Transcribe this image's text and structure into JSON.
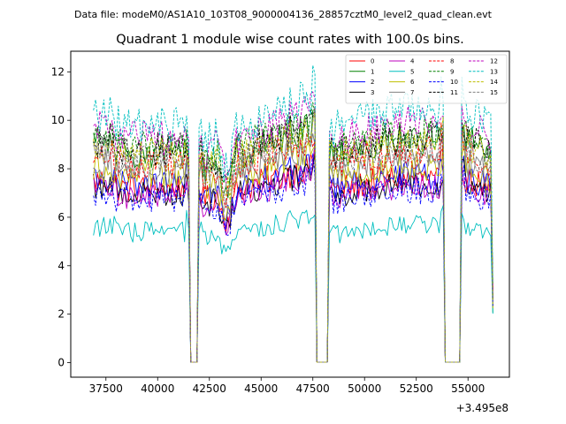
{
  "figure": {
    "suptitle": "Data file: modeM0/AS1A10_103T08_9000004136_28857cztM0_level2_quad_clean.evt"
  },
  "chart_data": {
    "type": "line",
    "title": "Quadrant 1 module wise count rates with 100.0s bins.",
    "xlabel": "",
    "ylabel": "",
    "x_offset_label": "+3.495e8",
    "xlim": [
      35800,
      57000
    ],
    "ylim": [
      -0.6,
      12.85
    ],
    "x_ticks": [
      37500,
      40000,
      42500,
      45000,
      47500,
      50000,
      52500,
      55000
    ],
    "x_tick_labels": [
      "37500",
      "40000",
      "42500",
      "45000",
      "47500",
      "50000",
      "52500",
      "55000"
    ],
    "y_ticks": [
      0,
      2,
      4,
      6,
      8,
      10,
      12
    ],
    "y_tick_labels": [
      "0",
      "2",
      "4",
      "6",
      "8",
      "10",
      "12"
    ],
    "grid": false,
    "legend_position": "top-right",
    "x_start": 36900,
    "x_end": 56150,
    "bin_width": 100,
    "gaps": [
      [
        41500,
        41950
      ],
      [
        47650,
        48250
      ],
      [
        53850,
        54650
      ]
    ],
    "series": [
      {
        "name": "0",
        "color": "#ff0000",
        "dash": "solid",
        "level": 7.2
      },
      {
        "name": "1",
        "color": "#008000",
        "dash": "solid",
        "level": 8.7
      },
      {
        "name": "2",
        "color": "#0000ff",
        "dash": "solid",
        "level": 7.3
      },
      {
        "name": "3",
        "color": "#000000",
        "dash": "solid",
        "level": 7.0
      },
      {
        "name": "4",
        "color": "#bf00bf",
        "dash": "solid",
        "level": 6.9
      },
      {
        "name": "5",
        "color": "#00bfbf",
        "dash": "solid",
        "level": 5.4
      },
      {
        "name": "6",
        "color": "#bfbf00",
        "dash": "solid",
        "level": 7.7
      },
      {
        "name": "7",
        "color": "#808080",
        "dash": "solid",
        "level": 7.9
      },
      {
        "name": "8",
        "color": "#ff0000",
        "dash": "dashed",
        "level": 8.2
      },
      {
        "name": "9",
        "color": "#008000",
        "dash": "dashed",
        "level": 8.9
      },
      {
        "name": "10",
        "color": "#0000ff",
        "dash": "dashed",
        "level": 6.7
      },
      {
        "name": "11",
        "color": "#000000",
        "dash": "dashed",
        "level": 8.8
      },
      {
        "name": "12",
        "color": "#bf00bf",
        "dash": "dashed",
        "level": 9.3
      },
      {
        "name": "13",
        "color": "#00bfbf",
        "dash": "dashed",
        "level": 9.8
      },
      {
        "name": "14",
        "color": "#bfbf00",
        "dash": "dashed",
        "level": 8.6
      },
      {
        "name": "15",
        "color": "#808080",
        "dash": "dashed",
        "level": 8.3
      }
    ]
  }
}
